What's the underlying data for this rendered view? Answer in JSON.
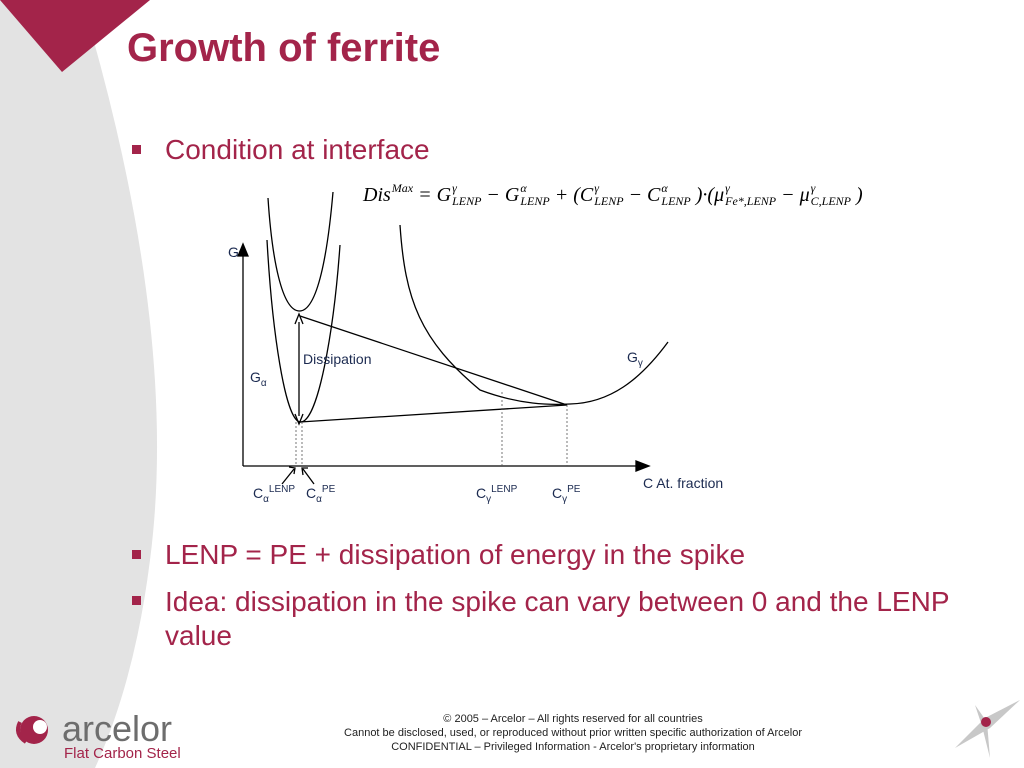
{
  "header": {
    "title": "Growth of ferrite"
  },
  "bullets": [
    "Condition at interface",
    "LENP = PE + dissipation of energy in the spike",
    "Idea: dissipation in the spike can vary between 0 and the LENP value"
  ],
  "formula": [
    {
      "base": "Dis",
      "sup": "Max"
    },
    {
      "base": "= G",
      "sup": "γ",
      "sub": "LENP"
    },
    {
      "base": "− G",
      "sup": "α",
      "sub": "LENP"
    },
    {
      "base": "+ (C",
      "sup": "γ",
      "sub": "LENP"
    },
    {
      "base": "− C",
      "sup": "α",
      "sub": "LENP"
    },
    {
      "base": ")·(μ",
      "sup": "γ",
      "sub": "Fe*,LENP"
    },
    {
      "base": "− μ",
      "sup": "γ",
      "sub": "C,LENP"
    },
    {
      "base": ")"
    }
  ],
  "diagram": {
    "y_axis": "G",
    "x_axis": "C At. fraction",
    "dissipation": "Dissipation",
    "g_gamma": {
      "base": "G",
      "sub": "γ"
    },
    "g_alpha": {
      "base": "G",
      "sub": "α"
    },
    "c_alpha_lenp": {
      "base": "C",
      "sub": "α",
      "sup": "LENP"
    },
    "c_alpha_pe": {
      "base": "C",
      "sub": "α",
      "sup": "PE"
    },
    "c_gamma_lenp": {
      "base": "C",
      "sub": "γ",
      "sup": "LENP"
    },
    "c_gamma_pe": {
      "base": "C",
      "sub": "γ",
      "sup": "PE"
    }
  },
  "footer": {
    "lines": [
      "© 2005 – Arcelor – All rights reserved for all countries",
      "Cannot be disclosed, used, or reproduced without prior written specific authorization of Arcelor",
      "CONFIDENTIAL – Privileged Information - Arcelor's proprietary information"
    ],
    "logo": "arcelor",
    "division": "Flat Carbon Steel"
  }
}
